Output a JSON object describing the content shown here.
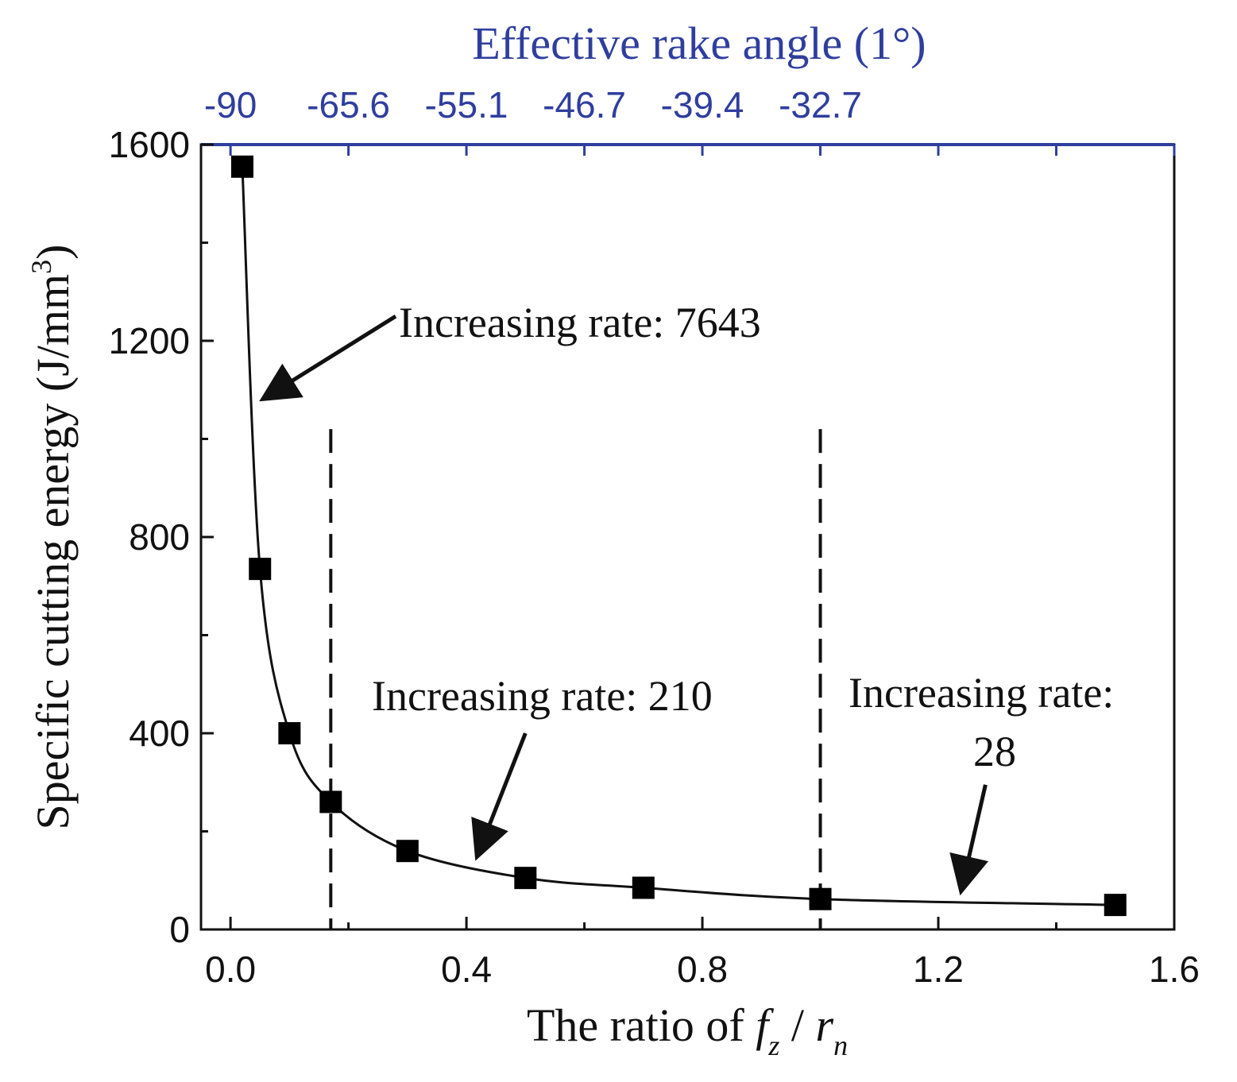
{
  "chart_data": {
    "type": "line",
    "marker": "square",
    "title": "",
    "xlabel_parts": {
      "prefix": "The ratio of ",
      "var1": "f",
      "sub1": "z",
      "slash": " / ",
      "var2": "r",
      "sub2": "n"
    },
    "ylabel": "Specific cutting energy (J/mm",
    "ylabel_sup": "3",
    "ylabel_close": ")",
    "top_axis_label": "Effective rake angle (1°)",
    "xlim": [
      -0.05,
      1.6
    ],
    "ylim": [
      0,
      1600
    ],
    "x_ticks": [
      0.0,
      0.4,
      0.8,
      1.2,
      1.6
    ],
    "x_tick_labels": [
      "0.0",
      "0.4",
      "0.8",
      "1.2",
      "1.6"
    ],
    "x_minor_ticks": [
      0.2,
      0.6,
      1.0,
      1.4
    ],
    "y_ticks": [
      0,
      400,
      800,
      1200,
      1600
    ],
    "y_tick_labels": [
      "0",
      "400",
      "800",
      "1200",
      "1600"
    ],
    "y_minor_ticks": [
      200,
      600,
      1000,
      1400
    ],
    "top_ticks": [
      0.0,
      0.2,
      0.4,
      0.6,
      0.8,
      1.0,
      1.2,
      1.4,
      1.6
    ],
    "top_tick_labels": [
      {
        "x": 0.0,
        "label": "-90"
      },
      {
        "x": 0.2,
        "label": "-65.6"
      },
      {
        "x": 0.4,
        "label": "-55.1"
      },
      {
        "x": 0.6,
        "label": "-46.7"
      },
      {
        "x": 0.8,
        "label": "-39.4"
      },
      {
        "x": 1.0,
        "label": "-32.7"
      }
    ],
    "series": [
      {
        "name": "Specific cutting energy",
        "x": [
          0.02,
          0.05,
          0.1,
          0.17,
          0.3,
          0.5,
          0.7,
          1.0,
          1.5
        ],
        "y": [
          1555,
          735,
          400,
          260,
          160,
          105,
          85,
          62,
          50
        ]
      }
    ],
    "dashed_lines_x": [
      0.17,
      1.0
    ],
    "annotations": [
      {
        "lines": [
          "Increasing rate: 7643"
        ],
        "arrow_from": [
          0.28,
          1250
        ],
        "arrow_to": [
          0.06,
          1085
        ]
      },
      {
        "lines": [
          "Increasing rate: 210"
        ],
        "arrow_from": [
          0.5,
          400
        ],
        "arrow_to": [
          0.42,
          155
        ]
      },
      {
        "lines": [
          "Increasing rate:",
          "28"
        ],
        "arrow_from": [
          1.28,
          295
        ],
        "arrow_to": [
          1.24,
          85
        ]
      }
    ]
  }
}
